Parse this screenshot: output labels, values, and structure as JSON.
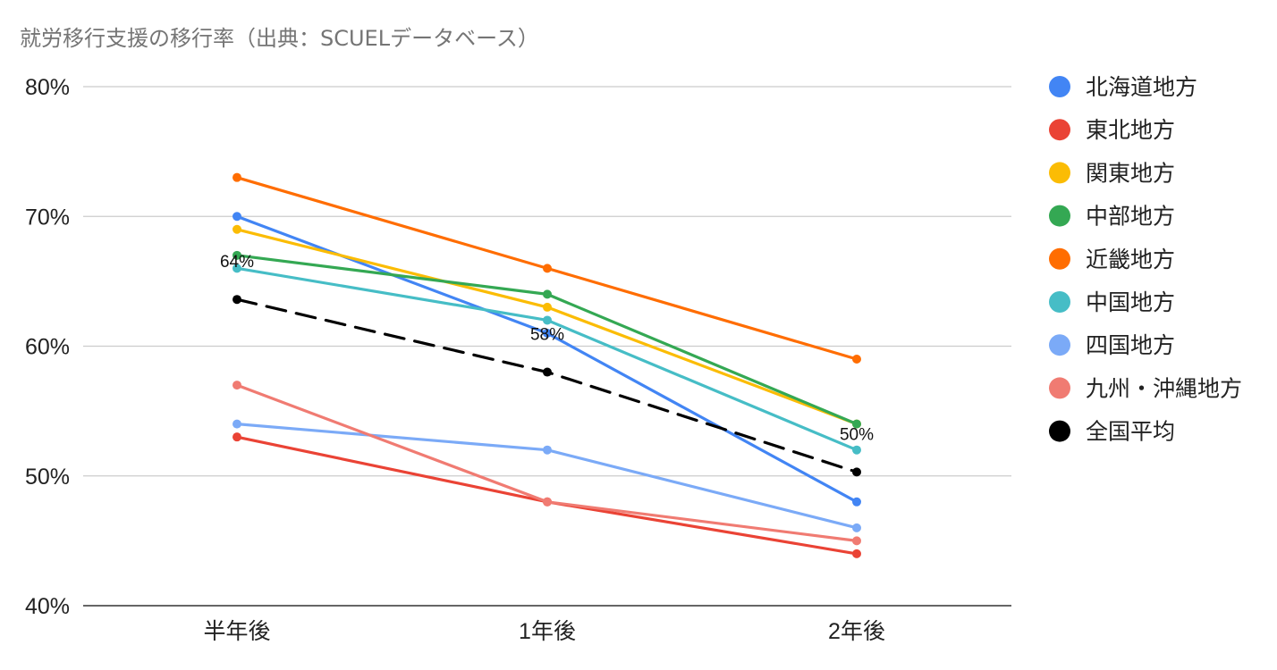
{
  "chart_data": {
    "type": "line",
    "title": "就労移行支援の移行率（出典：SCUELデータベース）",
    "xlabel": "",
    "ylabel": "",
    "categories": [
      "半年後",
      "1年後",
      "2年後"
    ],
    "ylim": [
      40,
      80
    ],
    "yticks": [
      40,
      50,
      60,
      70,
      80
    ],
    "ytick_labels": [
      "40%",
      "50%",
      "60%",
      "70%",
      "80%"
    ],
    "grid": true,
    "legend_position": "right",
    "series": [
      {
        "name": "北海道地方",
        "color": "#4285f4",
        "values": [
          70,
          61,
          48
        ],
        "dashed": false
      },
      {
        "name": "東北地方",
        "color": "#ea4335",
        "values": [
          53,
          48,
          44
        ],
        "dashed": false
      },
      {
        "name": "関東地方",
        "color": "#fbbc04",
        "values": [
          69,
          63,
          54
        ],
        "dashed": false
      },
      {
        "name": "中部地方",
        "color": "#34a853",
        "values": [
          67,
          64,
          54
        ],
        "dashed": false
      },
      {
        "name": "近畿地方",
        "color": "#ff6d01",
        "values": [
          73,
          66,
          59
        ],
        "dashed": false
      },
      {
        "name": "中国地方",
        "color": "#46bdc6",
        "values": [
          66,
          62,
          52
        ],
        "dashed": false
      },
      {
        "name": "四国地方",
        "color": "#7baaf7",
        "values": [
          54,
          52,
          46
        ],
        "dashed": false
      },
      {
        "name": "九州・沖縄地方",
        "color": "#f07b72",
        "values": [
          57,
          48,
          45
        ],
        "dashed": false
      },
      {
        "name": "全国平均",
        "color": "#000000",
        "values": [
          63.6,
          58,
          50.3
        ],
        "dashed": true,
        "data_labels": [
          "64%",
          "58%",
          "50%"
        ]
      }
    ]
  }
}
